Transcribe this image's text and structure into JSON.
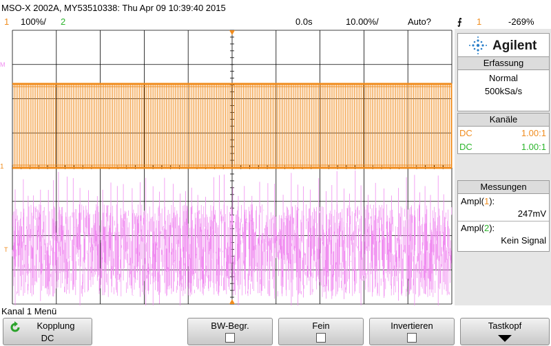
{
  "title": {
    "text": "MSO-X 2002A, MY53510338: Thu Apr 09 10:39:40 2015"
  },
  "status": {
    "ch1_num": "1",
    "ch1_scale": "100%/",
    "ch2_num": "2",
    "time_offset": "0.0s",
    "time_scale": "10.00%/",
    "trigger_mode": "Auto?",
    "trigger_src": "1",
    "trigger_level": "-269%"
  },
  "panel": {
    "brand": "Agilent",
    "acq_header": "Erfassung",
    "acq_mode": "Normal",
    "acq_rate": "500kSa/s",
    "chan_header": "Kanäle",
    "ch1_coupling": "DC",
    "ch1_probe": "1.00:1",
    "ch2_coupling": "DC",
    "ch2_probe": "1.00:1",
    "meas_header": "Messungen",
    "meas1_label": "Ampl(",
    "meas1_ch": "1",
    "meas1_value": "247mV",
    "meas2_label": "Ampl(",
    "meas2_ch": "2",
    "meas2_value": "Kein Signal"
  },
  "menu": {
    "title": "Kanal 1 Menü",
    "softkeys": {
      "kopplung_label": "Kopplung",
      "kopplung_value": "DC",
      "bw_label": "BW-Begr.",
      "fein_label": "Fein",
      "invert_label": "Invertieren",
      "probe_label": "Tastkopf"
    }
  },
  "colors": {
    "ch1": "#f08c1e",
    "ch2": "#2bb52b",
    "math": "#f08cf0",
    "grid": "#000000"
  }
}
